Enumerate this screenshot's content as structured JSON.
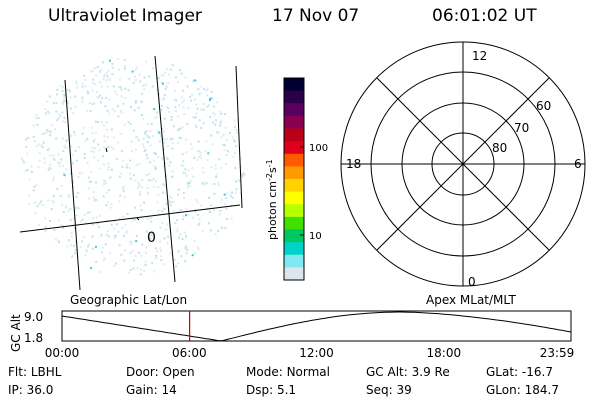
{
  "header": {
    "title": "Ultraviolet Imager",
    "date": "17 Nov 07",
    "time": "06:01:02 UT"
  },
  "image_panel": {
    "projection_label": "Geographic Lat/Lon",
    "grid_label": "0"
  },
  "colorbar": {
    "unit_label": "photon cm",
    "unit_sup1": "-2",
    "unit_mid": "s",
    "unit_sup2": "-1",
    "tick_labels": [
      "100",
      "10"
    ],
    "scale": "log",
    "colors": [
      "#000030",
      "#2a0048",
      "#5a0060",
      "#8a0050",
      "#b80018",
      "#e0001a",
      "#ff5a00",
      "#ff9a00",
      "#ffd200",
      "#ffff00",
      "#b8ff00",
      "#40e000",
      "#00c860",
      "#00d4c8",
      "#7fe8f0",
      "#dde6ec"
    ]
  },
  "polar_plot": {
    "projection_label": "Apex MLat/MLT",
    "mlt_labels": {
      "top": "12",
      "left": "18",
      "right": "6",
      "bottom": "0"
    },
    "lat_labels": [
      "60",
      "70",
      "80"
    ]
  },
  "timeline": {
    "ylabel": "GC Alt",
    "ytick_top": "9.0",
    "ytick_bottom": "1.8",
    "xtick_labels": [
      "00:00",
      "06:00",
      "12:00",
      "18:00",
      "23:59"
    ],
    "cursor_color": "#cc0000"
  },
  "info_rows": [
    [
      {
        "k": "Flt:",
        "v": "LBHL"
      },
      {
        "k": "Door:",
        "v": "Open"
      },
      {
        "k": "Mode:",
        "v": "Normal"
      },
      {
        "k": "GC Alt:",
        "v": "3.9 Re"
      },
      {
        "k": "GLat:",
        "v": "-16.7"
      }
    ],
    [
      {
        "k": "IP:",
        "v": "36.0"
      },
      {
        "k": "Gain:",
        "v": "14"
      },
      {
        "k": "Dsp:",
        "v": "5.1"
      },
      {
        "k": "Seq:",
        "v": "39"
      },
      {
        "k": "GLon:",
        "v": "184.7"
      }
    ]
  ]
}
